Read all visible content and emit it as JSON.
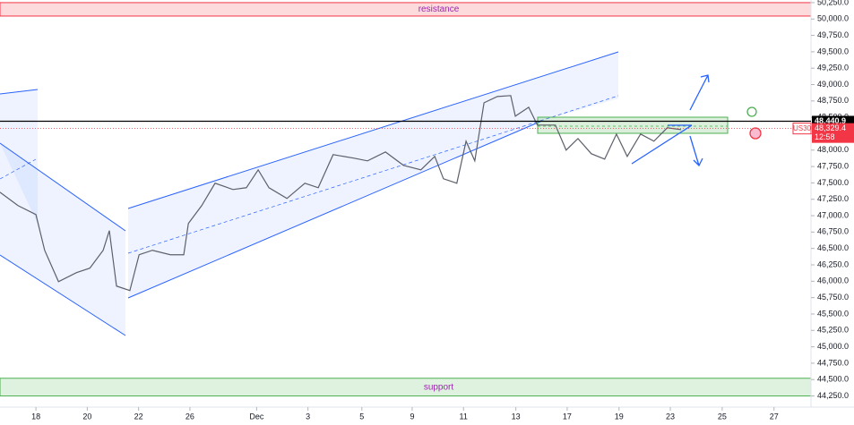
{
  "chart_data": {
    "type": "line",
    "series": [
      {
        "name": "US30",
        "color": "#5d606b",
        "x": [
          -0.7,
          -0.35,
          0,
          0.17,
          0.44,
          0.79,
          1.05,
          1.31,
          1.43,
          1.57,
          1.83,
          2.01,
          2.27,
          2.62,
          2.88,
          2.97,
          3.23,
          3.49,
          3.84,
          4.1,
          4.33,
          4.54,
          4.89,
          5.24,
          5.5,
          5.79,
          6.2,
          6.46,
          6.81,
          7.16,
          7.5,
          7.77,
          7.94,
          8.2,
          8.38,
          8.55,
          8.73,
          8.99,
          9.25,
          9.34,
          9.6,
          9.77,
          10.12,
          10.33,
          10.56,
          10.82,
          11.08,
          11.31,
          11.52,
          11.78,
          12.04,
          12.3,
          12.57
        ],
        "values": [
          47358,
          47154,
          47017,
          46472,
          45994,
          46131,
          46199,
          46472,
          46772,
          45926,
          45858,
          46404,
          46472,
          46404,
          46404,
          46881,
          47154,
          47495,
          47399,
          47427,
          47699,
          47427,
          47263,
          47495,
          47427,
          47931,
          47877,
          47836,
          47972,
          47768,
          47699,
          47904,
          47563,
          47495,
          48136,
          47836,
          48722,
          48818,
          48832,
          48518,
          48654,
          48382,
          48382,
          48000,
          48177,
          47945,
          47863,
          48245,
          47904,
          48245,
          48136,
          48341,
          48313
        ]
      }
    ],
    "xlim": [
      -0.7,
      15.1
    ],
    "xticks": [
      {
        "value": 0,
        "label": "18"
      },
      {
        "value": 1,
        "label": "20"
      },
      {
        "value": 2,
        "label": "22"
      },
      {
        "value": 3,
        "label": "26"
      },
      {
        "value": 4.3,
        "label": "Dec"
      },
      {
        "value": 5.3,
        "label": "3"
      },
      {
        "value": 6.35,
        "label": "5"
      },
      {
        "value": 7.33,
        "label": "9"
      },
      {
        "value": 8.33,
        "label": "11"
      },
      {
        "value": 9.35,
        "label": "13"
      },
      {
        "value": 10.35,
        "label": "17"
      },
      {
        "value": 11.36,
        "label": "19"
      },
      {
        "value": 12.36,
        "label": "23"
      },
      {
        "value": 13.37,
        "label": "25"
      },
      {
        "value": 14.38,
        "label": "27"
      }
    ],
    "ylim": [
      44080,
      50290
    ],
    "yticks": [
      {
        "value": 44250,
        "label": "44,250.0"
      },
      {
        "value": 44500,
        "label": "44,500.0"
      },
      {
        "value": 44750,
        "label": "44,750.0"
      },
      {
        "value": 45000,
        "label": "45,000.0"
      },
      {
        "value": 45250,
        "label": "45,250.0"
      },
      {
        "value": 45500,
        "label": "45,500.0"
      },
      {
        "value": 45750,
        "label": "45,750.0"
      },
      {
        "value": 46000,
        "label": "46,000.0"
      },
      {
        "value": 46250,
        "label": "46,250.0"
      },
      {
        "value": 46500,
        "label": "46,500.0"
      },
      {
        "value": 46750,
        "label": "46,750.0"
      },
      {
        "value": 47000,
        "label": "47,000.0"
      },
      {
        "value": 47250,
        "label": "47,250.0"
      },
      {
        "value": 47500,
        "label": "47,500.0"
      },
      {
        "value": 47750,
        "label": "47,750.0"
      },
      {
        "value": 48000,
        "label": "48,000.0"
      },
      {
        "value": 48250,
        "label": "48,250.0"
      },
      {
        "value": 48500,
        "label": "48,500.0"
      },
      {
        "value": 48750,
        "label": "48,750.0"
      },
      {
        "value": 49000,
        "label": "49,000.0"
      },
      {
        "value": 49250,
        "label": "49,250.0"
      },
      {
        "value": 49500,
        "label": "49,500.0"
      },
      {
        "value": 49750,
        "label": "49,750.0"
      },
      {
        "value": 50000,
        "label": "50,000.0"
      },
      {
        "value": 50250,
        "label": "50,250.0"
      }
    ],
    "zones": [
      {
        "label": "resistance",
        "range": [
          50045,
          50250
        ],
        "color": "#f23645",
        "text_color": "#9c27b0"
      },
      {
        "label": "support",
        "range": [
          44250,
          44520
        ],
        "color": "#4caf50",
        "text_color": "#9c27b0"
      }
    ],
    "level": {
      "value": 48440.9,
      "label": "48,440.9"
    },
    "current": {
      "symbol": "US30",
      "value": 48329.4,
      "label": "48,329.4",
      "countdown": "12:58"
    }
  }
}
